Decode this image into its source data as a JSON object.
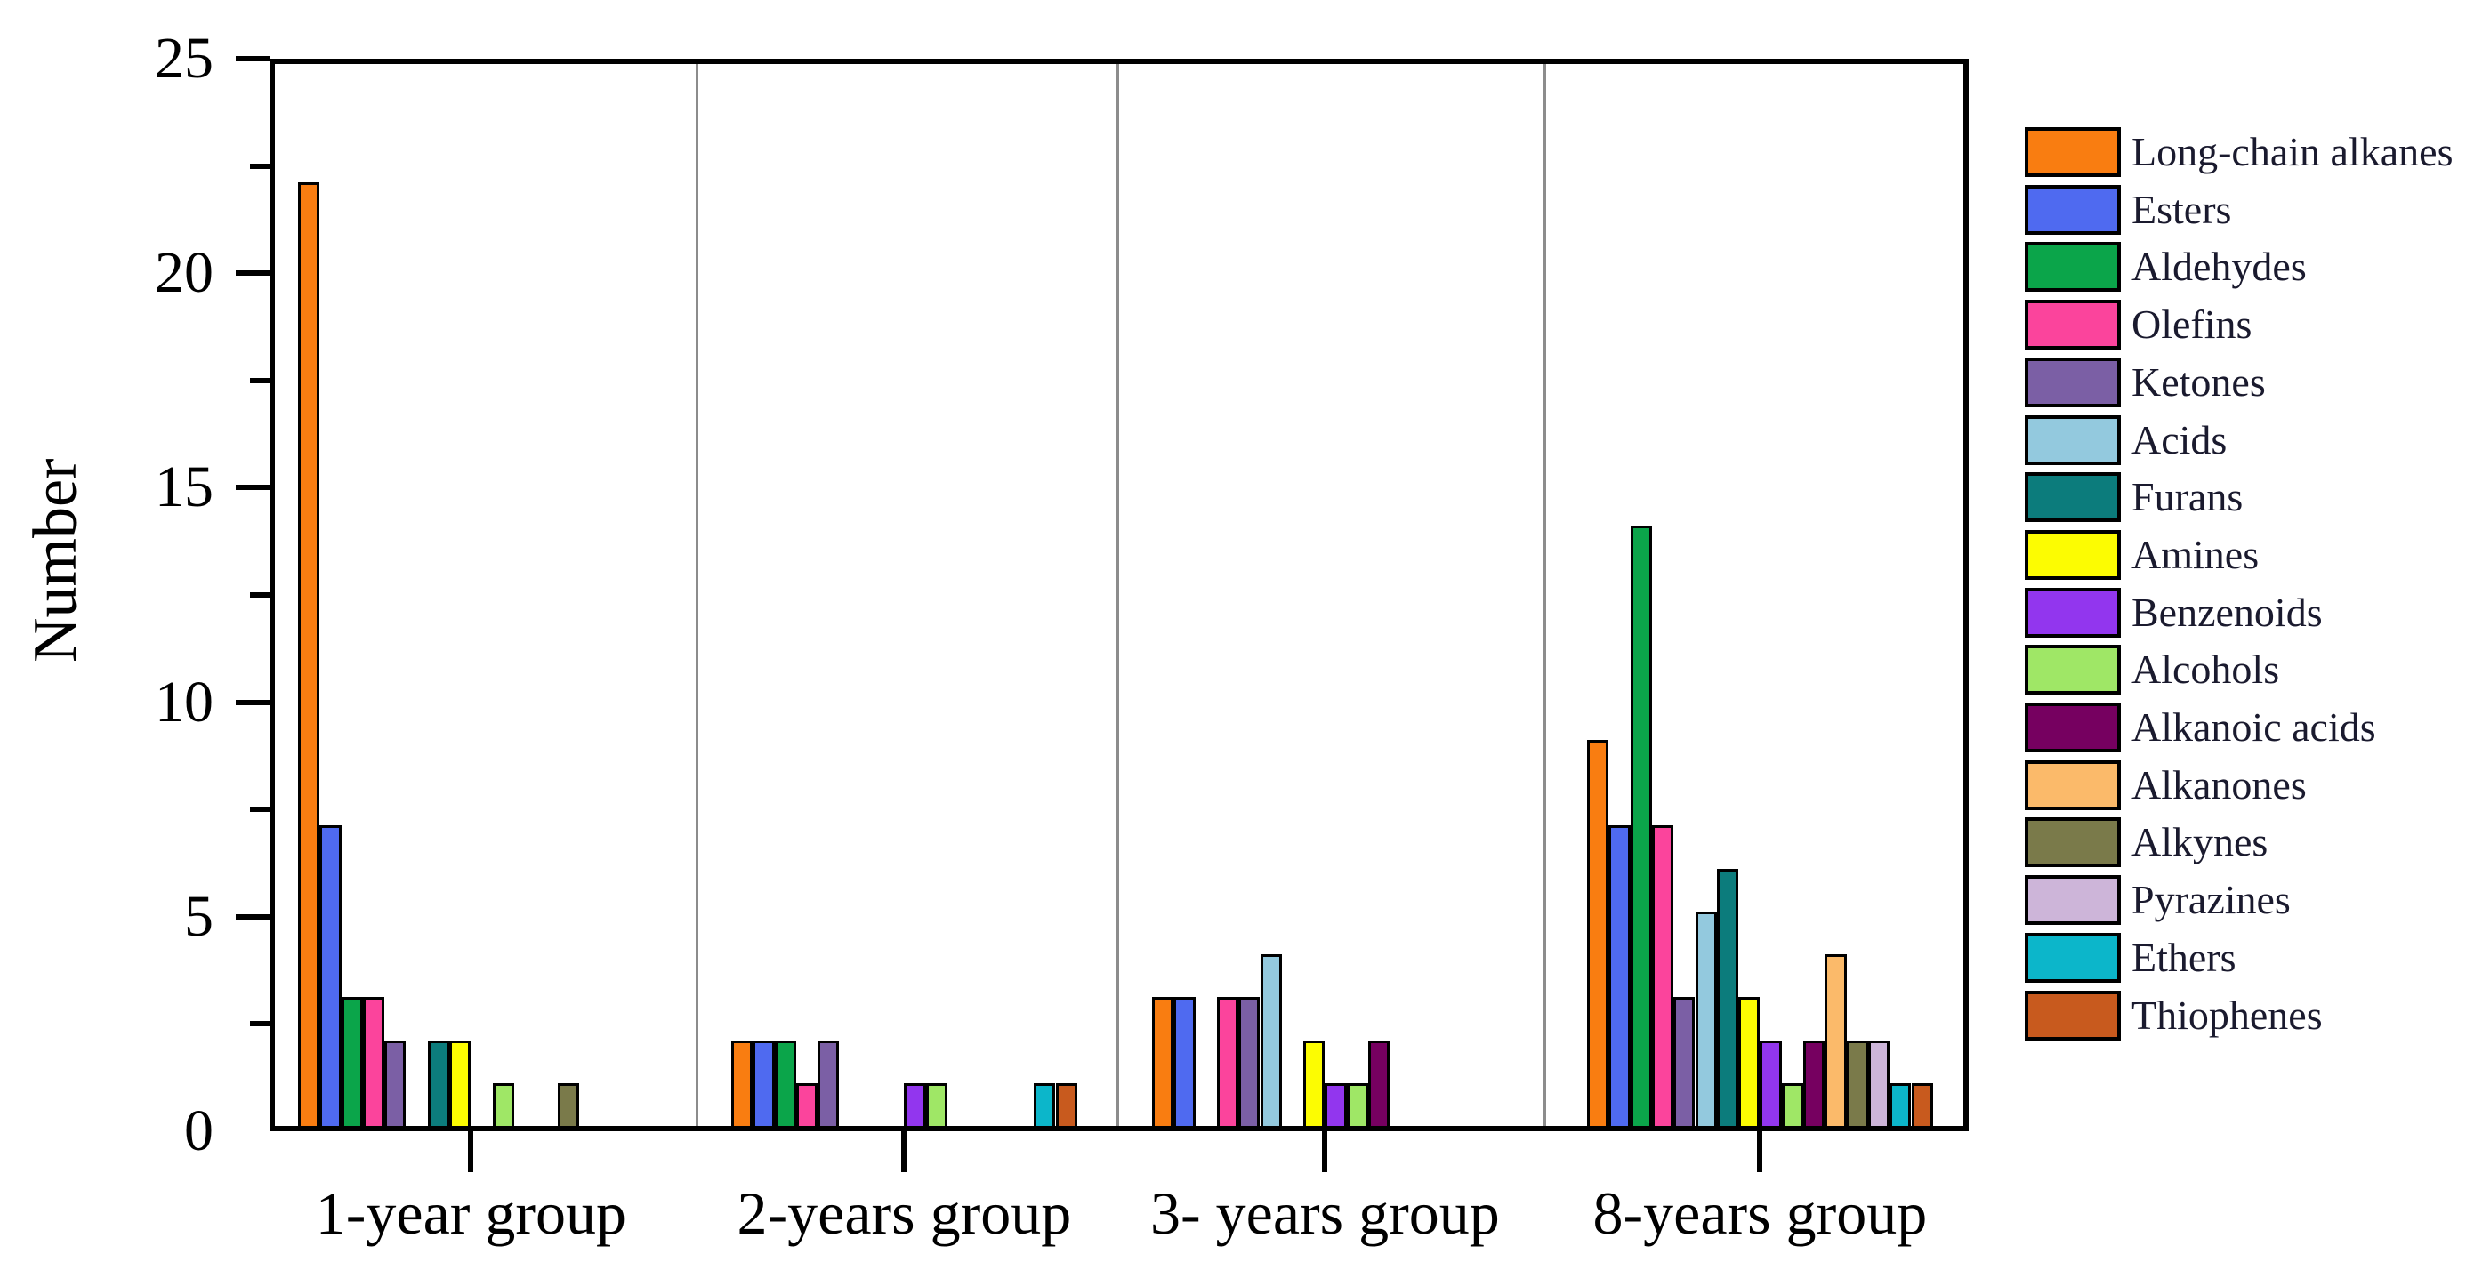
{
  "figure": {
    "background": "#ffffff",
    "axis_color": "#000000",
    "separator_color": "#8c8c8c",
    "text_color": "#000000"
  },
  "chart_data": {
    "type": "bar",
    "title": "",
    "xlabel": "",
    "ylabel": "Number",
    "ylim": [
      0,
      25
    ],
    "y_major_ticks": [
      0,
      5,
      10,
      15,
      20,
      25
    ],
    "y_minor_step": 2.5,
    "grid": false,
    "legend_position": "right",
    "categories": [
      "1-year group",
      "2-years group",
      "3- years group",
      "8-years group"
    ],
    "series": [
      {
        "name": "Long-chain alkanes",
        "color": "#F97D11",
        "values": [
          22,
          2,
          3,
          9
        ]
      },
      {
        "name": "Esters",
        "color": "#4F6AF0",
        "values": [
          7,
          2,
          3,
          7
        ]
      },
      {
        "name": "Aldehydes",
        "color": "#0BA54A",
        "values": [
          3,
          2,
          0,
          14
        ]
      },
      {
        "name": "Olefins",
        "color": "#FB449C",
        "values": [
          3,
          1,
          3,
          7
        ]
      },
      {
        "name": "Ketones",
        "color": "#7B5FA5",
        "values": [
          2,
          2,
          3,
          3
        ]
      },
      {
        "name": "Acids",
        "color": "#93C9DE",
        "values": [
          0,
          0,
          4,
          5
        ]
      },
      {
        "name": "Furans",
        "color": "#0C7C7C",
        "values": [
          2,
          0,
          0,
          6
        ]
      },
      {
        "name": "Amines",
        "color": "#FCFC02",
        "values": [
          2,
          0,
          2,
          3
        ]
      },
      {
        "name": "Benzenoids",
        "color": "#9236EE",
        "values": [
          0,
          1,
          1,
          2
        ]
      },
      {
        "name": "Alcohols",
        "color": "#9FE766",
        "values": [
          1,
          1,
          1,
          1
        ]
      },
      {
        "name": "Alkanoic acids",
        "color": "#760060",
        "values": [
          0,
          0,
          2,
          2
        ]
      },
      {
        "name": "Alkanones",
        "color": "#FBBA6A",
        "values": [
          0,
          0,
          0,
          4
        ]
      },
      {
        "name": "Alkynes",
        "color": "#7A7A4A",
        "values": [
          1,
          0,
          0,
          2
        ]
      },
      {
        "name": "Pyrazines",
        "color": "#CDB5D9",
        "values": [
          0,
          0,
          0,
          2
        ]
      },
      {
        "name": "Ethers",
        "color": "#0CB6CA",
        "values": [
          0,
          1,
          0,
          1
        ]
      },
      {
        "name": "Thiophenes",
        "color": "#C85A1E",
        "values": [
          0,
          1,
          0,
          1
        ]
      }
    ]
  }
}
